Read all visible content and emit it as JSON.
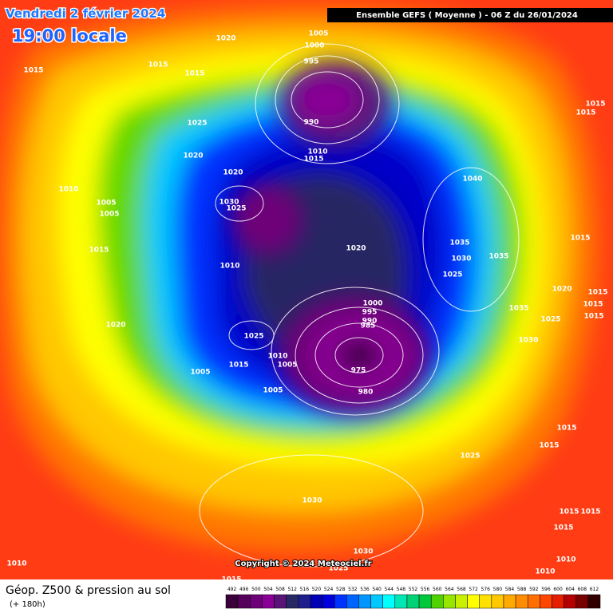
{
  "header": {
    "date": "Vendredi 2 février 2024",
    "time": "19:00 locale",
    "run": "Ensemble GEFS  ( Moyenne )  -  06 Z du 26/01/2024"
  },
  "isobar_labels": [
    1005,
    1020,
    1000,
    995,
    1015,
    1015,
    1015,
    1015,
    1015,
    1025,
    990,
    1020,
    1010,
    1015,
    1020,
    1040,
    1010,
    1030,
    1005,
    1025,
    1005,
    1015,
    1035,
    1015,
    1020,
    1030,
    1035,
    1010,
    1025,
    1020,
    1015,
    1000,
    1015,
    1035,
    995,
    1015,
    990,
    1025,
    1020,
    985,
    1025,
    1030,
    1010,
    1015,
    1005,
    975,
    1005,
    980,
    1005,
    1015,
    1015,
    1025,
    1030,
    1015,
    1015,
    1015,
    1030,
    1025,
    1010,
    1010,
    1010,
    1015
  ],
  "copyright": "Copyright © 2024 Meteociel.fr",
  "footer": {
    "title": "Géop. Z500 & pression au sol",
    "lead": "(+ 180h)"
  },
  "scale": {
    "values": [
      492,
      496,
      500,
      504,
      508,
      512,
      516,
      520,
      524,
      528,
      532,
      536,
      540,
      544,
      548,
      552,
      556,
      560,
      564,
      568,
      572,
      576,
      580,
      584,
      588,
      592,
      596,
      600,
      604,
      608,
      612
    ],
    "colors": [
      "#3a003a",
      "#55005a",
      "#6e0078",
      "#8a0096",
      "#5a1478",
      "#282864",
      "#1e1e8c",
      "#0000b4",
      "#0000dc",
      "#0032ff",
      "#0064ff",
      "#0096ff",
      "#00c8ff",
      "#00ffff",
      "#00e6b4",
      "#00d278",
      "#00c83c",
      "#50d200",
      "#96e600",
      "#c8f000",
      "#ffff00",
      "#ffe100",
      "#ffc800",
      "#ffaa00",
      "#ff8c00",
      "#ff6e00",
      "#ff4600",
      "#e61e00",
      "#b40000",
      "#780000",
      "#300000"
    ]
  }
}
